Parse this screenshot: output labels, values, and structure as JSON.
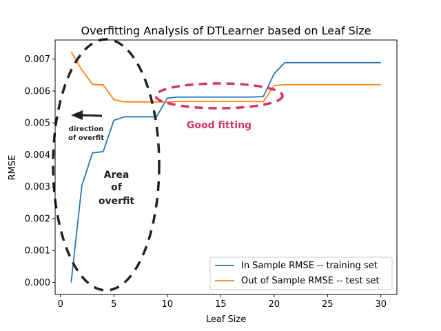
{
  "chart_data": {
    "type": "line",
    "title": "Overfitting Analysis of DTLearner based on Leaf Size",
    "xlabel": "Leaf Size",
    "ylabel": "RMSE",
    "xlim": [
      -0.5,
      31.5
    ],
    "ylim": [
      -0.00038,
      0.0076
    ],
    "x_ticks": [
      0,
      5,
      10,
      15,
      20,
      25,
      30
    ],
    "y_ticks": [
      0.0,
      0.001,
      0.002,
      0.003,
      0.004,
      0.005,
      0.006,
      0.007
    ],
    "y_tick_labels": [
      "0.000",
      "0.001",
      "0.002",
      "0.003",
      "0.004",
      "0.005",
      "0.006",
      "0.007"
    ],
    "grid": false,
    "legend_position": "lower-right",
    "x": [
      1,
      2,
      3,
      4,
      5,
      6,
      7,
      8,
      9,
      10,
      11,
      12,
      13,
      14,
      15,
      16,
      17,
      18,
      19,
      20,
      21,
      22,
      23,
      24,
      25,
      26,
      27,
      28,
      29,
      30
    ],
    "series": [
      {
        "name": "In Sample RMSE -- training set",
        "color": "#1f77b4",
        "values": [
          0.0,
          0.00303,
          0.00406,
          0.0041,
          0.00508,
          0.00519,
          0.00519,
          0.00519,
          0.00519,
          0.00578,
          0.00581,
          0.00581,
          0.00581,
          0.00581,
          0.00581,
          0.00581,
          0.00581,
          0.00581,
          0.00583,
          0.00654,
          0.00689,
          0.00689,
          0.00689,
          0.00689,
          0.00689,
          0.00689,
          0.00689,
          0.00689,
          0.00689,
          0.00689
        ]
      },
      {
        "name": "Out of Sample RMSE -- test set",
        "color": "#ff7f0e",
        "values": [
          0.00723,
          0.00666,
          0.00621,
          0.00619,
          0.00573,
          0.00566,
          0.00566,
          0.00566,
          0.00566,
          0.00565,
          0.00567,
          0.00567,
          0.00567,
          0.00567,
          0.00567,
          0.00567,
          0.00567,
          0.00567,
          0.00567,
          0.00617,
          0.0062,
          0.0062,
          0.0062,
          0.0062,
          0.0062,
          0.0062,
          0.0062,
          0.0062,
          0.0062,
          0.0062
        ]
      }
    ],
    "annotations": {
      "direction_line1": "direction",
      "direction_line2": "of overfit",
      "area_line1": "Area",
      "area_line2": "of",
      "area_line3": "overfit",
      "good_fitting": "Good fitting",
      "dark_color": "#222222",
      "pink_color": "#d6336c"
    }
  }
}
